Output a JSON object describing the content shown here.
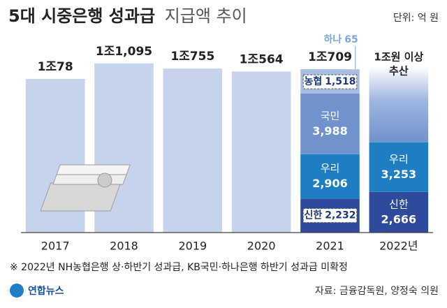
{
  "chart_data": {
    "type": "stacked-bar",
    "title": "5대 시중은행 성과급",
    "title_suffix": "지급액 추이",
    "unit": "단위: 억 원",
    "categories": [
      "2017",
      "2018",
      "2019",
      "2020",
      "2021",
      "2022년"
    ],
    "totals": {
      "color": "#c6d3ec",
      "values": [
        10078,
        11095,
        10755,
        10564,
        10709,
        null
      ],
      "value_labels": [
        "1조78",
        "1조1,095",
        "1조755",
        "1조564",
        "1조709",
        null
      ]
    },
    "series": [
      {
        "name": "신한",
        "color": "#2d4a9c",
        "values": [
          null,
          null,
          null,
          null,
          2232,
          2666
        ],
        "value_labels": [
          null,
          null,
          null,
          null,
          "2,232",
          "2,666"
        ]
      },
      {
        "name": "우리",
        "color": "#1e7ec3",
        "values": [
          null,
          null,
          null,
          null,
          2906,
          3253
        ],
        "value_labels": [
          null,
          null,
          null,
          null,
          "2,906",
          "3,253"
        ]
      },
      {
        "name": "국민",
        "color": "#7093cd",
        "values": [
          null,
          null,
          null,
          null,
          3988,
          null
        ],
        "value_labels": [
          null,
          null,
          null,
          null,
          "3,988",
          null
        ]
      },
      {
        "name": "농협",
        "color": "#aabde3",
        "values": [
          null,
          null,
          null,
          null,
          1518,
          null
        ],
        "value_labels": [
          null,
          null,
          null,
          null,
          "1,518",
          null
        ]
      },
      {
        "name": "하나",
        "color": "#aabde3",
        "values": [
          null,
          null,
          null,
          null,
          65,
          null
        ],
        "value_labels": [
          null,
          null,
          null,
          null,
          "65",
          null
        ]
      }
    ],
    "estimate": {
      "lines": [
        "1조원 이상",
        "추산"
      ],
      "color": "#6f92cc"
    },
    "ylim": [
      0,
      12000
    ],
    "note": "※ 2022년 NH농협은행 상·하반기 성과급, KB국민·하나은행 하반기 성과급 미확정",
    "source": "자료: 금융감독원, 양정숙 의원",
    "logo": "연합뉴스"
  }
}
